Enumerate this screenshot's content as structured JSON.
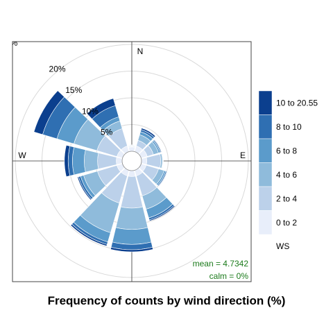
{
  "chart_data": {
    "type": "wind-rose",
    "title": "Frequency of counts by wind direction (%)",
    "directions": [
      "N",
      "E",
      "W"
    ],
    "radial_ticks": [
      "%",
      "5%",
      "10%",
      "15%",
      "20%"
    ],
    "radial_tick_values": [
      0,
      5,
      10,
      15,
      20
    ],
    "rmax": 20,
    "legend_title": "WS",
    "legend_position": "right",
    "speed_bins": [
      {
        "label": "0 to 2",
        "color": "#e8eefa"
      },
      {
        "label": "2 to 4",
        "color": "#bcd1ea"
      },
      {
        "label": "4 to 6",
        "color": "#8fbbdb"
      },
      {
        "label": "6 to 8",
        "color": "#5b9bcb"
      },
      {
        "label": "8 to 10",
        "color": "#2f6fb2"
      },
      {
        "label": "10 to 20.55",
        "color": "#0b3f8e"
      }
    ],
    "sectors": [
      {
        "angle": 0,
        "cumulative": [
          0.8,
          0.9,
          1.0,
          1.1,
          1.15,
          1.2
        ]
      },
      {
        "angle": 30,
        "cumulative": [
          1.1,
          2.2,
          3.3,
          3.9,
          4.3,
          4.6
        ]
      },
      {
        "angle": 60,
        "cumulative": [
          1.2,
          2.4,
          3.4,
          3.7,
          3.9,
          4.0
        ]
      },
      {
        "angle": 90,
        "cumulative": [
          1.0,
          3.6,
          3.9,
          4.0,
          4.05,
          4.1
        ]
      },
      {
        "angle": 120,
        "cumulative": [
          1.0,
          3.4,
          4.5,
          4.8,
          5.0,
          5.1
        ]
      },
      {
        "angle": 150,
        "cumulative": [
          1.1,
          5.0,
          7.6,
          9.3,
          9.7,
          9.9
        ]
      },
      {
        "angle": 180,
        "cumulative": [
          1.1,
          7.0,
          11.0,
          13.8,
          14.8,
          15.2
        ]
      },
      {
        "angle": 210,
        "cumulative": [
          1.1,
          6.4,
          12.2,
          14.0,
          14.5,
          14.8
        ]
      },
      {
        "angle": 240,
        "cumulative": [
          1.1,
          4.9,
          7.6,
          8.2,
          8.6,
          8.8
        ]
      },
      {
        "angle": 270,
        "cumulative": [
          1.1,
          4.6,
          7.1,
          9.3,
          10.1,
          10.8
        ]
      },
      {
        "angle": 300,
        "cumulative": [
          1.1,
          5.0,
          9.5,
          12.8,
          15.6,
          17.3
        ]
      },
      {
        "angle": 330,
        "cumulative": [
          1.1,
          4.5,
          6.0,
          6.8,
          9.0,
          10.4
        ]
      }
    ],
    "mean_text": "mean = 4.7342",
    "calm_text": "calm = 0%"
  }
}
